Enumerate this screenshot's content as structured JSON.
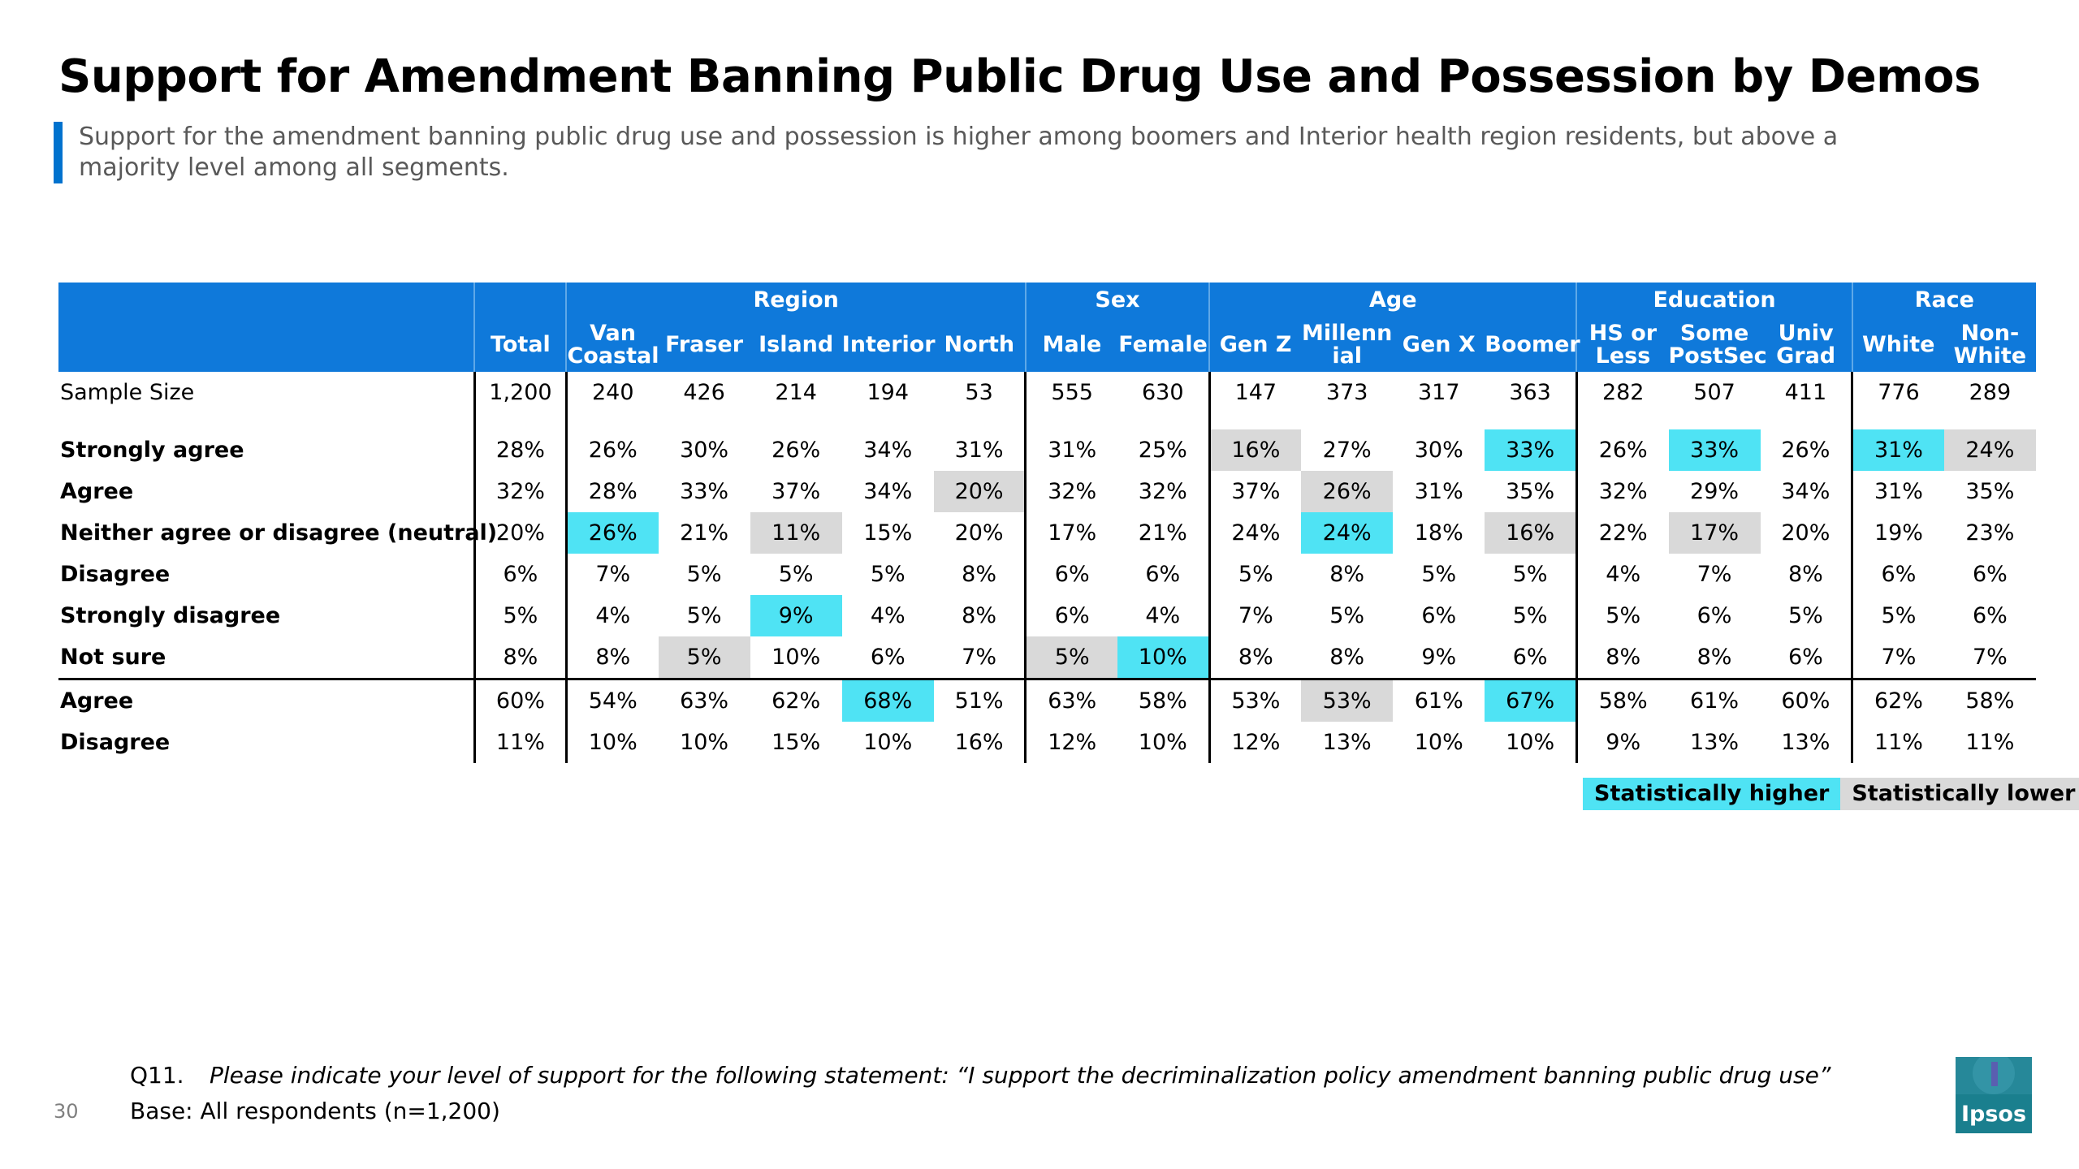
{
  "title": "Support for Amendment Banning Public Drug Use and Possession by Demos",
  "subtitle": "Support for the amendment banning public drug use and possession is higher among boomers and Interior health region residents, but above a majority level among all segments.",
  "chart_data": {
    "type": "table",
    "groups": [
      {
        "label": "",
        "span": 1
      },
      {
        "label": "Region",
        "span": 5
      },
      {
        "label": "Sex",
        "span": 2
      },
      {
        "label": "Age",
        "span": 4
      },
      {
        "label": "Education",
        "span": 3
      },
      {
        "label": "Race",
        "span": 2
      }
    ],
    "columns": [
      "Total",
      "Van Coastal",
      "Fraser",
      "Island",
      "Interior",
      "North",
      "Male",
      "Female",
      "Gen Z",
      "Millenn ial",
      "Gen X",
      "Boomer",
      "HS or Less",
      "Some PostSec",
      "Univ Grad",
      "White",
      "Non-White"
    ],
    "sample_size": {
      "label": "Sample Size",
      "values": [
        "1,200",
        "240",
        "426",
        "214",
        "194",
        "53",
        "555",
        "630",
        "147",
        "373",
        "317",
        "363",
        "282",
        "507",
        "411",
        "776",
        "289"
      ]
    },
    "rows": [
      {
        "label": "Strongly agree",
        "values": [
          "28%",
          "26%",
          "30%",
          "26%",
          "34%",
          "31%",
          "31%",
          "25%",
          "16%",
          "27%",
          "30%",
          "33%",
          "26%",
          "33%",
          "26%",
          "31%",
          "24%"
        ],
        "flags": [
          "",
          "",
          "",
          "",
          "",
          "",
          "",
          "",
          "lo",
          "",
          "",
          "hi",
          "",
          "hi",
          "",
          "hi",
          "lo"
        ]
      },
      {
        "label": "Agree",
        "values": [
          "32%",
          "28%",
          "33%",
          "37%",
          "34%",
          "20%",
          "32%",
          "32%",
          "37%",
          "26%",
          "31%",
          "35%",
          "32%",
          "29%",
          "34%",
          "31%",
          "35%"
        ],
        "flags": [
          "",
          "",
          "",
          "",
          "",
          "lo",
          "",
          "",
          "",
          "lo",
          "",
          "",
          "",
          "",
          "",
          "",
          ""
        ]
      },
      {
        "label": "Neither agree or disagree (neutral)",
        "values": [
          "20%",
          "26%",
          "21%",
          "11%",
          "15%",
          "20%",
          "17%",
          "21%",
          "24%",
          "24%",
          "18%",
          "16%",
          "22%",
          "17%",
          "20%",
          "19%",
          "23%"
        ],
        "flags": [
          "",
          "hi",
          "",
          "lo",
          "",
          "",
          "",
          "",
          "",
          "hi",
          "",
          "lo",
          "",
          "lo",
          "",
          "",
          ""
        ]
      },
      {
        "label": "Disagree",
        "values": [
          "6%",
          "7%",
          "5%",
          "5%",
          "5%",
          "8%",
          "6%",
          "6%",
          "5%",
          "8%",
          "5%",
          "5%",
          "4%",
          "7%",
          "8%",
          "6%",
          "6%"
        ],
        "flags": [
          "",
          "",
          "",
          "",
          "",
          "",
          "",
          "",
          "",
          "",
          "",
          "",
          "",
          "",
          "",
          "",
          ""
        ]
      },
      {
        "label": "Strongly disagree",
        "values": [
          "5%",
          "4%",
          "5%",
          "9%",
          "4%",
          "8%",
          "6%",
          "4%",
          "7%",
          "5%",
          "6%",
          "5%",
          "5%",
          "6%",
          "5%",
          "5%",
          "6%"
        ],
        "flags": [
          "",
          "",
          "",
          "hi",
          "",
          "",
          "",
          "",
          "",
          "",
          "",
          "",
          "",
          "",
          "",
          "",
          ""
        ]
      },
      {
        "label": "Not sure",
        "values": [
          "8%",
          "8%",
          "5%",
          "10%",
          "6%",
          "7%",
          "5%",
          "10%",
          "8%",
          "8%",
          "9%",
          "6%",
          "8%",
          "8%",
          "6%",
          "7%",
          "7%"
        ],
        "flags": [
          "",
          "",
          "lo",
          "",
          "",
          "",
          "lo",
          "hi",
          "",
          "",
          "",
          "",
          "",
          "",
          "",
          "",
          ""
        ]
      }
    ],
    "summary_rows": [
      {
        "label": "Agree",
        "values": [
          "60%",
          "54%",
          "63%",
          "62%",
          "68%",
          "51%",
          "63%",
          "58%",
          "53%",
          "53%",
          "61%",
          "67%",
          "58%",
          "61%",
          "60%",
          "62%",
          "58%"
        ],
        "flags": [
          "",
          "",
          "",
          "",
          "hi",
          "",
          "",
          "",
          "",
          "lo",
          "",
          "hi",
          "",
          "",
          "",
          "",
          ""
        ]
      },
      {
        "label": "Disagree",
        "values": [
          "11%",
          "10%",
          "10%",
          "15%",
          "10%",
          "16%",
          "12%",
          "10%",
          "12%",
          "13%",
          "10%",
          "10%",
          "9%",
          "13%",
          "13%",
          "11%",
          "11%"
        ],
        "flags": [
          "",
          "",
          "",
          "",
          "",
          "",
          "",
          "",
          "",
          "",
          "",
          "",
          "",
          "",
          "",
          "",
          ""
        ]
      }
    ],
    "group_starts": [
      0,
      1,
      6,
      8,
      12,
      15
    ],
    "colors": {
      "header": "#0f79da",
      "higher": "#4fe3f4",
      "lower": "#d9d9d9"
    }
  },
  "legend": {
    "higher": "Statistically higher",
    "lower": "Statistically lower"
  },
  "footer": {
    "question_number": "Q11.",
    "question_text": "Please indicate your level of support for the following statement: “I support the decriminalization policy amendment banning public drug use”",
    "base": "Base: All respondents (n=1,200)",
    "page_number": "30"
  },
  "logo": {
    "text": "Ipsos",
    "icon": "ipsos-logo"
  }
}
